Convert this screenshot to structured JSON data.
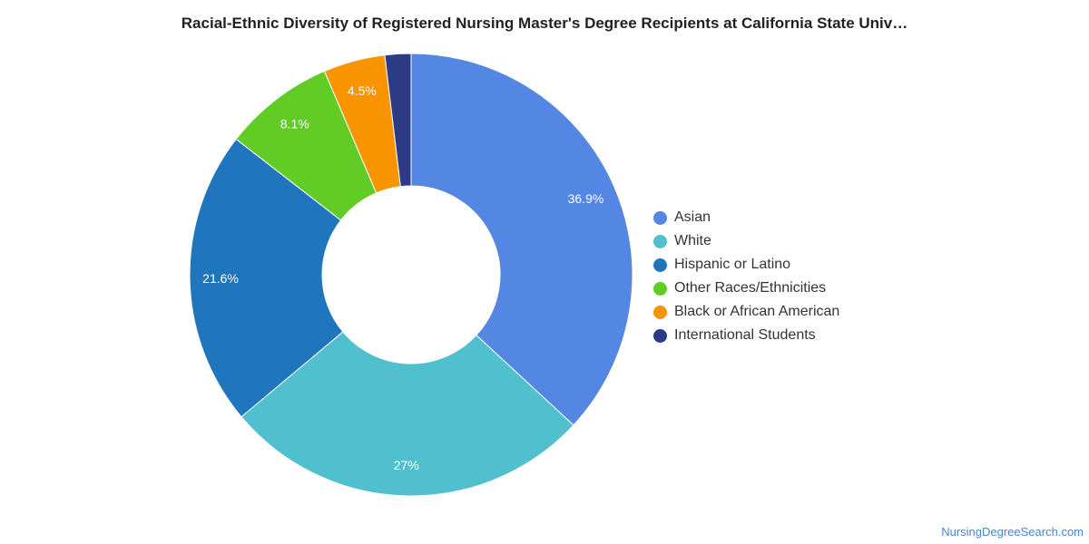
{
  "chart_data": {
    "type": "pie",
    "variant": "donut",
    "title": "Racial-Ethnic Diversity of Registered Nursing Master's Degree Recipients at California State Univ…",
    "series": [
      {
        "name": "Asian",
        "value": 36.9,
        "label": "36.9%",
        "color": "#5486e3"
      },
      {
        "name": "White",
        "value": 27,
        "label": "27%",
        "color": "#51c0ce"
      },
      {
        "name": "Hispanic or Latino",
        "value": 21.6,
        "label": "21.6%",
        "color": "#2076bc"
      },
      {
        "name": "Other Races/Ethnicities",
        "value": 8.1,
        "label": "8.1%",
        "color": "#62cc27"
      },
      {
        "name": "Black or African American",
        "value": 4.5,
        "label": "4.5%",
        "color": "#f79400"
      },
      {
        "name": "International Students",
        "value": 1.9,
        "label": "",
        "color": "#2d3a86"
      }
    ],
    "legend": "right"
  },
  "watermark": "NursingDegreeSearch.com"
}
